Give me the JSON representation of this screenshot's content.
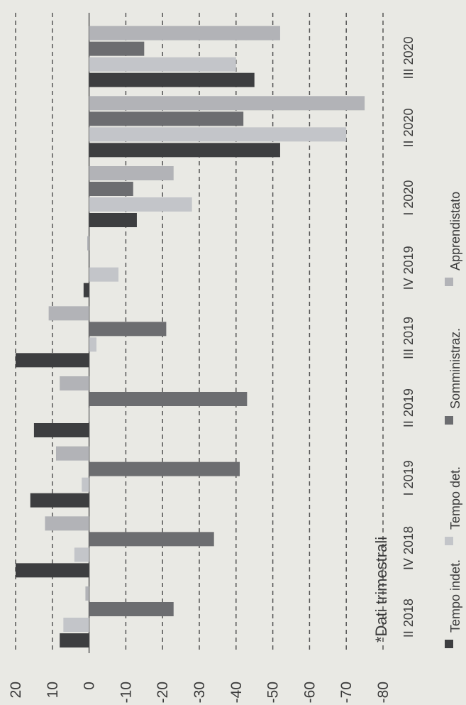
{
  "chart_data": {
    "type": "bar",
    "orientation": "vertical",
    "note": "*Dati trimestrali",
    "categories": [
      "II 2018",
      "IV 2018",
      "I 2019",
      "II 2019",
      "III 2019",
      "IV 2019",
      "I 2020",
      "II 2020",
      "III 2020"
    ],
    "series": [
      {
        "name": "Tempo indet.",
        "color": "#3d3e40",
        "values": [
          8,
          20,
          16,
          15,
          20,
          1.5,
          -13,
          -52,
          -45
        ]
      },
      {
        "name": "Tempo det.",
        "color": "#c3c5c9",
        "values": [
          7,
          4,
          2,
          0,
          -2,
          -8,
          -28,
          -70,
          -40
        ]
      },
      {
        "name": "Somministraz.",
        "color": "#6c6d70",
        "values": [
          -23,
          -34,
          -41,
          -43,
          -21,
          0,
          -12,
          -42,
          -15
        ]
      },
      {
        "name": "Apprendistato",
        "color": "#b2b3b7",
        "values": [
          1,
          12,
          9,
          8,
          11,
          0.5,
          -23,
          -75,
          -52
        ]
      }
    ],
    "y_ticks": [
      "20",
      "10",
      "0",
      "-10",
      "-20",
      "-30",
      "-40",
      "-50",
      "-60",
      "-70",
      "-80"
    ],
    "ylim": [
      -80,
      20
    ],
    "grid": true,
    "legend": "bottom"
  }
}
